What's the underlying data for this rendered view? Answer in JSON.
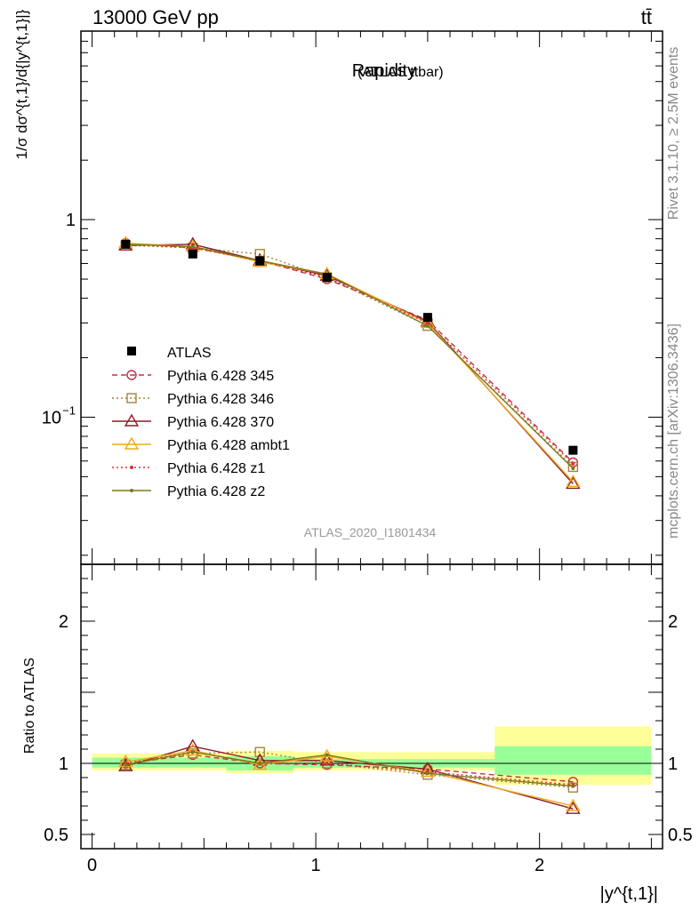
{
  "header": {
    "energy_label": "13000 GeV pp",
    "process_label": "tt̄"
  },
  "side": {
    "rivet_label": "Rivet 3.1.10, ≥ 2.5M events",
    "mcplots_label": "mcplots.cern.ch [arXiv:1306.3436]"
  },
  "chart_data": {
    "type": "line",
    "title": "Rapidity",
    "title_suffix": "(ATLAS ttbar)",
    "analysis_id": "ATLAS_2020_I1801434",
    "xlabel": "|y^{t,1}|",
    "ylabel_main": "1/σ dσ^{t,1}/d{|y^{t,1}|}",
    "ylabel_ratio": "Ratio to ATLAS",
    "xlim": [
      -0.05,
      2.55
    ],
    "ylim_main": [
      0.018,
      9.0
    ],
    "ylim_ratio": [
      0.4,
      2.4
    ],
    "y_scale_main": "log",
    "x_ticks": [
      0,
      1,
      2
    ],
    "x_tick_labels": [
      "0",
      "1",
      "2"
    ],
    "main_tick_labels": [
      {
        "value": 1,
        "label": "1"
      },
      {
        "value": 0.1,
        "label": "10^{-1}"
      }
    ],
    "ratio_ticks": [
      {
        "value": 2,
        "label": "2"
      },
      {
        "value": 1,
        "label": "1"
      },
      {
        "value": 0.5,
        "label": "0.5"
      }
    ],
    "x": [
      0.15,
      0.45,
      0.75,
      1.05,
      1.5,
      2.15
    ],
    "bin_edges": [
      0,
      0.3,
      0.6,
      0.9,
      1.2,
      1.8,
      2.5
    ],
    "data": {
      "name": "ATLAS",
      "values": [
        0.75,
        0.67,
        0.62,
        0.51,
        0.32,
        0.068
      ]
    },
    "ratio_band_inner": [
      {
        "x0": 0,
        "x1": 0.6,
        "low": 0.97,
        "high": 1.04
      },
      {
        "x0": 0.6,
        "x1": 0.9,
        "low": 0.95,
        "high": 1.05
      },
      {
        "x0": 0.9,
        "x1": 1.8,
        "low": 0.97,
        "high": 1.03
      },
      {
        "x0": 1.8,
        "x1": 2.5,
        "low": 0.92,
        "high": 1.12
      }
    ],
    "ratio_band_outer": [
      {
        "x0": 0,
        "x1": 0.6,
        "low": 0.95,
        "high": 1.07
      },
      {
        "x0": 0.6,
        "x1": 0.9,
        "low": 0.93,
        "high": 1.09
      },
      {
        "x0": 0.9,
        "x1": 1.8,
        "low": 0.95,
        "high": 1.08
      },
      {
        "x0": 1.8,
        "x1": 2.5,
        "low": 0.85,
        "high": 1.26
      }
    ],
    "series": [
      {
        "name": "Pythia 6.428 345",
        "color": "#c0304a",
        "dash": "6,4",
        "marker": "circle",
        "values": [
          0.76,
          0.72,
          0.62,
          0.5,
          0.31,
          0.059
        ],
        "ratio": [
          1.0,
          1.06,
          1.0,
          0.99,
          0.96,
          0.87
        ]
      },
      {
        "name": "Pythia 6.428 346",
        "color": "#a8843c",
        "dash": "2,3",
        "marker": "square",
        "values": [
          0.74,
          0.72,
          0.67,
          0.51,
          0.29,
          0.056
        ],
        "ratio": [
          0.99,
          1.07,
          1.08,
          1.0,
          0.92,
          0.83
        ]
      },
      {
        "name": "Pythia 6.428 370",
        "color": "#8c1a26",
        "dash": "",
        "marker": "triangle",
        "values": [
          0.74,
          0.75,
          0.62,
          0.52,
          0.305,
          0.046
        ],
        "ratio": [
          0.98,
          1.12,
          1.02,
          1.02,
          0.96,
          0.68
        ]
      },
      {
        "name": "Pythia 6.428 ambt1",
        "color": "#f0a820",
        "dash": "",
        "marker": "triangle",
        "values": [
          0.76,
          0.73,
          0.61,
          0.53,
          0.3,
          0.047
        ],
        "ratio": [
          1.01,
          1.09,
          0.99,
          1.05,
          0.94,
          0.7
        ]
      },
      {
        "name": "Pythia 6.428 z1",
        "color": "#e03030",
        "dash": "2,3",
        "marker": "dot",
        "values": [
          0.75,
          0.72,
          0.62,
          0.51,
          0.3,
          0.058
        ],
        "ratio": [
          1.0,
          1.08,
          1.0,
          1.0,
          0.94,
          0.85
        ]
      },
      {
        "name": "Pythia 6.428 z2",
        "color": "#7a7a1c",
        "dash": "",
        "marker": "dot",
        "values": [
          0.75,
          0.73,
          0.62,
          0.53,
          0.29,
          0.055
        ],
        "ratio": [
          0.99,
          1.08,
          1.0,
          1.06,
          0.93,
          0.84
        ]
      }
    ]
  }
}
